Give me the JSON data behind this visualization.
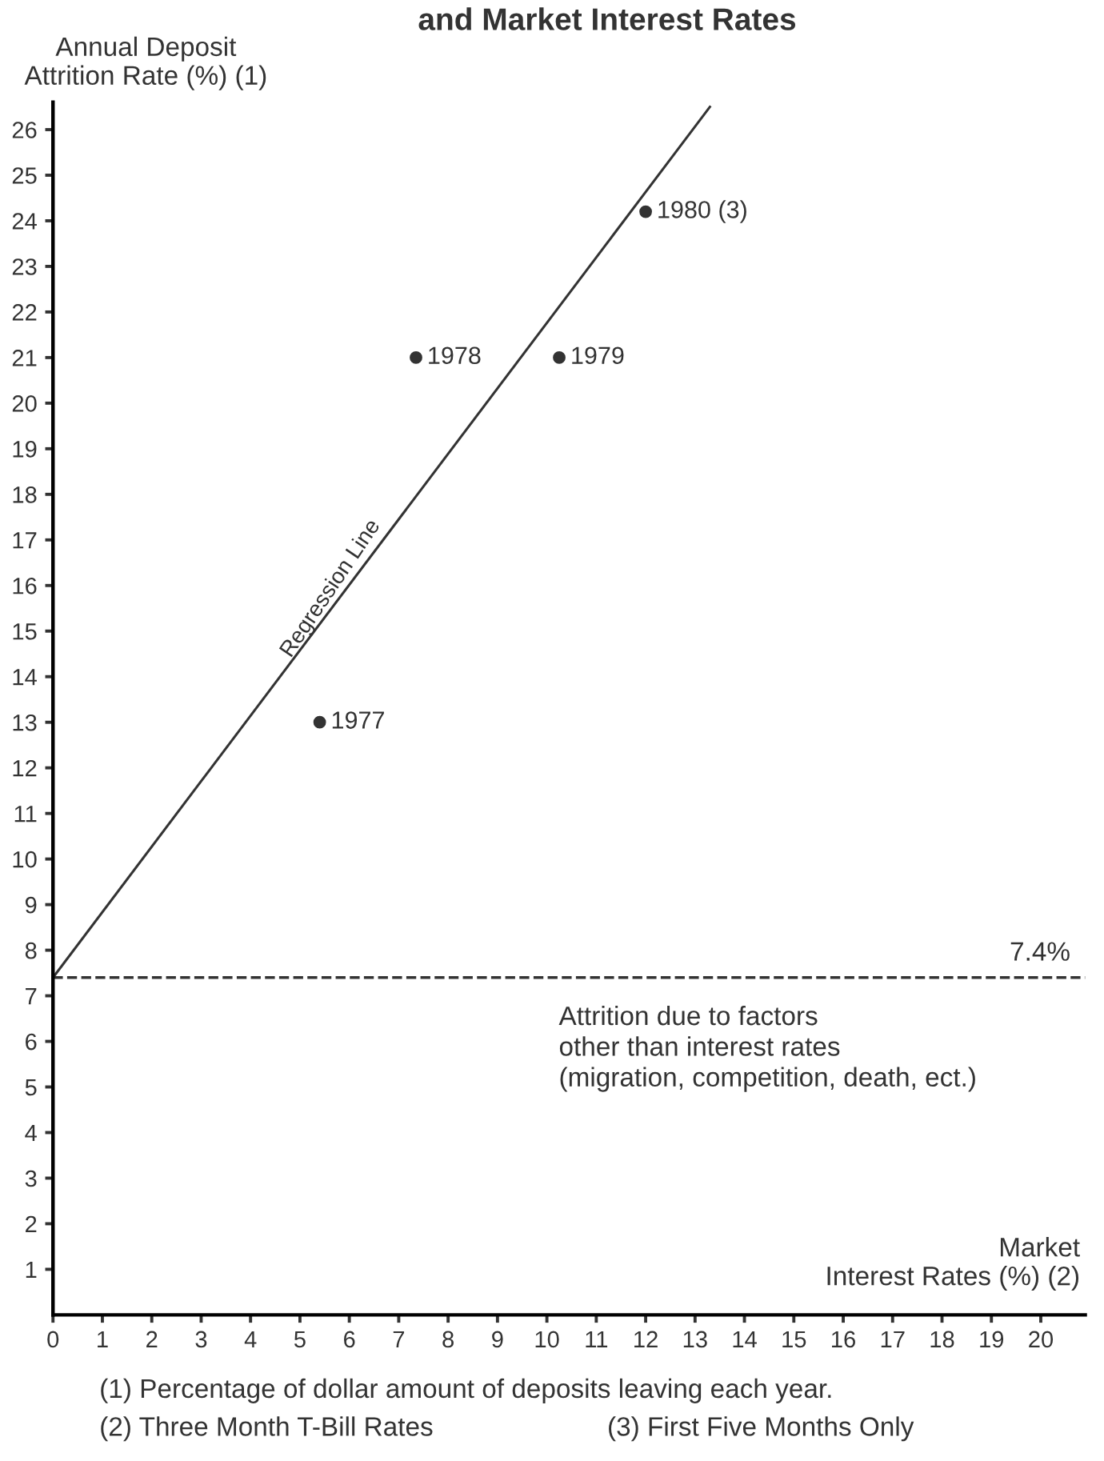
{
  "chart_data": {
    "type": "scatter",
    "title": "and Market Interest Rates",
    "ylabel": "Annual Deposit\nAttrition Rate (%) (1)",
    "xlabel": "Market\nInterest Rates (%) (2)",
    "series": [
      {
        "color": "#333333",
        "x": [
          5.4,
          7.35,
          10.25,
          12.0
        ],
        "values": [
          13,
          21,
          21,
          24.2
        ],
        "marker": "circle"
      },
      {
        "type": "line",
        "color": "#333333",
        "x": [
          0,
          13.3
        ],
        "values": [
          7.4,
          26.5
        ],
        "marker": "none",
        "line_style": "solid"
      }
    ],
    "xlim": [
      0,
      20.9
    ],
    "ylim": [
      0,
      26.6
    ],
    "xticks": [
      0,
      1,
      2,
      3,
      4,
      5,
      6,
      7,
      8,
      9,
      10,
      11,
      12,
      13,
      14,
      15,
      16,
      17,
      18,
      19,
      20
    ],
    "yticks": [
      1,
      2,
      3,
      4,
      5,
      6,
      7,
      8,
      9,
      10,
      11,
      12,
      13,
      14,
      15,
      16,
      17,
      18,
      19,
      20,
      21,
      22,
      23,
      24,
      25,
      26
    ],
    "ref_lines": [
      {
        "axis": "y",
        "value": 7.4,
        "label": "7.4%",
        "color": "#333333",
        "line_style": "dashed"
      }
    ],
    "annotations": [
      {
        "text": "1977",
        "x": 5.4,
        "y": 13
      },
      {
        "text": "1978",
        "x": 7.35,
        "y": 21
      },
      {
        "text": "1979",
        "x": 10.25,
        "y": 21
      },
      {
        "text": "1980 (3)",
        "x": 12.0,
        "y": 24.2
      },
      {
        "text": "Regression Line",
        "x": 5.8,
        "y": 15.8
      },
      "Attrition due to factors\nother than interest rates\n(migration, competition, death, ect.)",
      "(1) Percentage of dollar amount of deposits leaving each year.",
      "(2) Three Month T-Bill Rates",
      "(3) First Five Months Only"
    ],
    "grid": false
  }
}
